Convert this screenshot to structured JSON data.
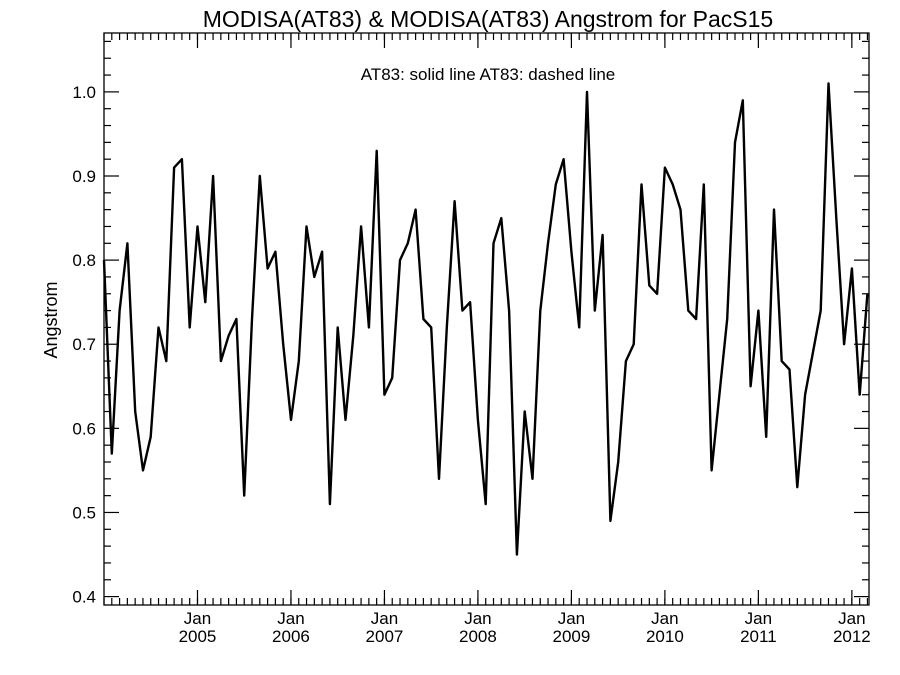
{
  "chart_data": {
    "type": "line",
    "title": "MODISA(AT83) & MODISA(AT83)  Angstrom for PacS15",
    "annotation": "AT83: solid line   AT83: dashed line",
    "ylabel": "Angstrom",
    "xlabel": "",
    "xlim": [
      "2004-01",
      "2012-02"
    ],
    "ylim": [
      0.39,
      1.07
    ],
    "grid": false,
    "y_ticks": [
      {
        "value": 0.4,
        "label": "0.4"
      },
      {
        "value": 0.5,
        "label": "0.5"
      },
      {
        "value": 0.6,
        "label": "0.6"
      },
      {
        "value": 0.7,
        "label": "0.7"
      },
      {
        "value": 0.8,
        "label": "0.8"
      },
      {
        "value": 0.9,
        "label": "0.9"
      },
      {
        "value": 1.0,
        "label": "1.0"
      }
    ],
    "x_ticks": [
      {
        "month": "2005-01",
        "label_top": "Jan",
        "label_bottom": "2005"
      },
      {
        "month": "2006-01",
        "label_top": "Jan",
        "label_bottom": "2006"
      },
      {
        "month": "2007-01",
        "label_top": "Jan",
        "label_bottom": "2007"
      },
      {
        "month": "2008-01",
        "label_top": "Jan",
        "label_bottom": "2008"
      },
      {
        "month": "2009-01",
        "label_top": "Jan",
        "label_bottom": "2009"
      },
      {
        "month": "2010-01",
        "label_top": "Jan",
        "label_bottom": "2010"
      },
      {
        "month": "2011-01",
        "label_top": "Jan",
        "label_bottom": "2011"
      },
      {
        "month": "2012-01",
        "label_top": "Jan",
        "label_bottom": "2012"
      }
    ],
    "series": [
      {
        "style": "solid",
        "color": "#000000",
        "points": [
          [
            "2004-01",
            0.8
          ],
          [
            "2004-02",
            0.57
          ],
          [
            "2004-03",
            0.74
          ],
          [
            "2004-04",
            0.82
          ],
          [
            "2004-05",
            0.62
          ],
          [
            "2004-06",
            0.55
          ],
          [
            "2004-07",
            0.59
          ],
          [
            "2004-08",
            0.72
          ],
          [
            "2004-09",
            0.68
          ],
          [
            "2004-10",
            0.91
          ],
          [
            "2004-11",
            0.92
          ],
          [
            "2004-12",
            0.72
          ],
          [
            "2005-01",
            0.84
          ],
          [
            "2005-02",
            0.75
          ],
          [
            "2005-03",
            0.9
          ],
          [
            "2005-04",
            0.68
          ],
          [
            "2005-05",
            0.71
          ],
          [
            "2005-06",
            0.73
          ],
          [
            "2005-07",
            0.52
          ],
          [
            "2005-08",
            0.73
          ],
          [
            "2005-09",
            0.9
          ],
          [
            "2005-10",
            0.79
          ],
          [
            "2005-11",
            0.81
          ],
          [
            "2005-12",
            0.7
          ],
          [
            "2006-01",
            0.61
          ],
          [
            "2006-02",
            0.68
          ],
          [
            "2006-03",
            0.84
          ],
          [
            "2006-04",
            0.78
          ],
          [
            "2006-05",
            0.81
          ],
          [
            "2006-06",
            0.51
          ],
          [
            "2006-07",
            0.72
          ],
          [
            "2006-08",
            0.61
          ],
          [
            "2006-09",
            0.71
          ],
          [
            "2006-10",
            0.84
          ],
          [
            "2006-11",
            0.72
          ],
          [
            "2006-12",
            0.93
          ],
          [
            "2007-01",
            0.64
          ],
          [
            "2007-02",
            0.66
          ],
          [
            "2007-03",
            0.8
          ],
          [
            "2007-04",
            0.82
          ],
          [
            "2007-05",
            0.86
          ],
          [
            "2007-06",
            0.73
          ],
          [
            "2007-07",
            0.72
          ],
          [
            "2007-08",
            0.54
          ],
          [
            "2007-09",
            0.72
          ],
          [
            "2007-10",
            0.87
          ],
          [
            "2007-11",
            0.74
          ],
          [
            "2007-12",
            0.75
          ],
          [
            "2008-01",
            0.61
          ],
          [
            "2008-02",
            0.51
          ],
          [
            "2008-03",
            0.82
          ],
          [
            "2008-04",
            0.85
          ],
          [
            "2008-05",
            0.74
          ],
          [
            "2008-06",
            0.45
          ],
          [
            "2008-07",
            0.62
          ],
          [
            "2008-08",
            0.54
          ],
          [
            "2008-09",
            0.74
          ],
          [
            "2008-10",
            0.82
          ],
          [
            "2008-11",
            0.89
          ],
          [
            "2008-12",
            0.92
          ],
          [
            "2009-01",
            0.81
          ],
          [
            "2009-02",
            0.72
          ],
          [
            "2009-03",
            1.0
          ],
          [
            "2009-04",
            0.74
          ],
          [
            "2009-05",
            0.83
          ],
          [
            "2009-06",
            0.49
          ],
          [
            "2009-07",
            0.56
          ],
          [
            "2009-08",
            0.68
          ],
          [
            "2009-09",
            0.7
          ],
          [
            "2009-10",
            0.89
          ],
          [
            "2009-11",
            0.77
          ],
          [
            "2009-12",
            0.76
          ],
          [
            "2010-01",
            0.91
          ],
          [
            "2010-02",
            0.89
          ],
          [
            "2010-03",
            0.86
          ],
          [
            "2010-04",
            0.74
          ],
          [
            "2010-05",
            0.73
          ],
          [
            "2010-06",
            0.89
          ],
          [
            "2010-07",
            0.55
          ],
          [
            "2010-08",
            0.64
          ],
          [
            "2010-09",
            0.73
          ],
          [
            "2010-10",
            0.94
          ],
          [
            "2010-11",
            0.99
          ],
          [
            "2010-12",
            0.65
          ],
          [
            "2011-01",
            0.74
          ],
          [
            "2011-02",
            0.59
          ],
          [
            "2011-03",
            0.86
          ],
          [
            "2011-04",
            0.68
          ],
          [
            "2011-05",
            0.67
          ],
          [
            "2011-06",
            0.53
          ],
          [
            "2011-07",
            0.64
          ],
          [
            "2011-08",
            0.69
          ],
          [
            "2011-09",
            0.74
          ],
          [
            "2011-10",
            1.01
          ],
          [
            "2011-11",
            0.85
          ],
          [
            "2011-12",
            0.7
          ],
          [
            "2012-01",
            0.79
          ],
          [
            "2012-02",
            0.64
          ],
          [
            "2012-03",
            0.76
          ]
        ]
      }
    ]
  }
}
